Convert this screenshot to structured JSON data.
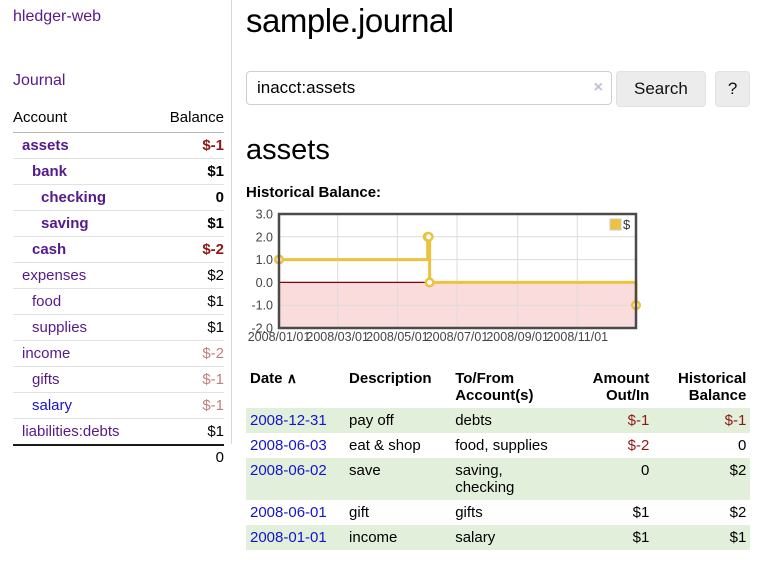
{
  "app": {
    "brand": "hledger-web"
  },
  "nav": {
    "journal": "Journal"
  },
  "sidebar": {
    "headers": {
      "account": "Account",
      "balance": "Balance"
    },
    "accounts": [
      {
        "name": "assets",
        "balance": "$-1"
      },
      {
        "name": "bank",
        "balance": "$1"
      },
      {
        "name": "checking",
        "balance": "0"
      },
      {
        "name": "saving",
        "balance": "$1"
      },
      {
        "name": "cash",
        "balance": "$-2"
      },
      {
        "name": "expenses",
        "balance": "$2"
      },
      {
        "name": "food",
        "balance": "$1"
      },
      {
        "name": "supplies",
        "balance": "$1"
      },
      {
        "name": "income",
        "balance": "$-2"
      },
      {
        "name": "gifts",
        "balance": "$-1"
      },
      {
        "name": "salary",
        "balance": "$-1"
      },
      {
        "name": "liabilities:debts",
        "balance": "$1"
      }
    ],
    "total": "0"
  },
  "header": {
    "title": "sample.journal"
  },
  "search": {
    "value": "inacct:assets",
    "clear_icon": "×",
    "search_button": "Search",
    "help_button": "?"
  },
  "account_page": {
    "heading": "assets",
    "chart_title": "Historical Balance:"
  },
  "chart_data": {
    "type": "line",
    "style": "step",
    "title": "Historical Balance of assets",
    "series": [
      {
        "name": "$",
        "color": "#edc240",
        "points": [
          [
            "2008-01-01",
            1
          ],
          [
            "2008-06-01",
            2
          ],
          [
            "2008-06-02",
            2
          ],
          [
            "2008-06-03",
            0
          ],
          [
            "2008-12-31",
            -1
          ]
        ]
      }
    ],
    "xlim": [
      "2008-01-01",
      "2008-12-31"
    ],
    "ylim": [
      -2,
      3
    ],
    "yticks": [
      {
        "value": 3,
        "label": "3.0"
      },
      {
        "value": 2,
        "label": "2.0"
      },
      {
        "value": 1,
        "label": "1.0"
      },
      {
        "value": 0,
        "label": "0.0"
      },
      {
        "value": -1,
        "label": "-1.0"
      },
      {
        "value": -2,
        "label": "-2.0"
      }
    ],
    "xticks": [
      {
        "date": "2008-01-01",
        "label": "2008/01/01"
      },
      {
        "date": "2008-03-01",
        "label": "2008/03/01"
      },
      {
        "date": "2008-05-01",
        "label": "2008/05/01"
      },
      {
        "date": "2008-07-01",
        "label": "2008/07/01"
      },
      {
        "date": "2008-09-01",
        "label": "2008/09/01"
      },
      {
        "date": "2008-11-01",
        "label": "2008/11/01"
      }
    ],
    "legend": {
      "label": "$",
      "position": "top-right"
    },
    "grid": true,
    "negative_region_color": "#fbdcdc",
    "zero_line_color": "#8b0000",
    "border_color": "#4a4a4a",
    "grid_color": "#dcdcdc",
    "tick_label_color": "#444444"
  },
  "register": {
    "headers": {
      "date": "Date",
      "sort_icon": "∧",
      "description": "Description",
      "account": "To/From Account(s)",
      "amount": "Amount Out/In",
      "balance": "Historical Balance"
    },
    "rows": [
      {
        "date": "2008-12-31",
        "description": "pay off",
        "account": "debts",
        "amount": "$-1",
        "balance": "$-1"
      },
      {
        "date": "2008-06-03",
        "description": "eat & shop",
        "account": "food, supplies",
        "amount": "$-2",
        "balance": "0"
      },
      {
        "date": "2008-06-02",
        "description": "save",
        "account": "saving, checking",
        "amount": "0",
        "balance": "$2"
      },
      {
        "date": "2008-06-01",
        "description": "gift",
        "account": "gifts",
        "amount": "$1",
        "balance": "$2"
      },
      {
        "date": "2008-01-01",
        "description": "income",
        "account": "salary",
        "amount": "$1",
        "balance": "$1"
      }
    ]
  },
  "colors": {
    "link_purple": "#551a8b",
    "link_blue": "#1414cc",
    "negative": "#8e1717",
    "pale_negative": "#c08080",
    "row_stripe": "#e2efda",
    "series_gold": "#edc240"
  }
}
